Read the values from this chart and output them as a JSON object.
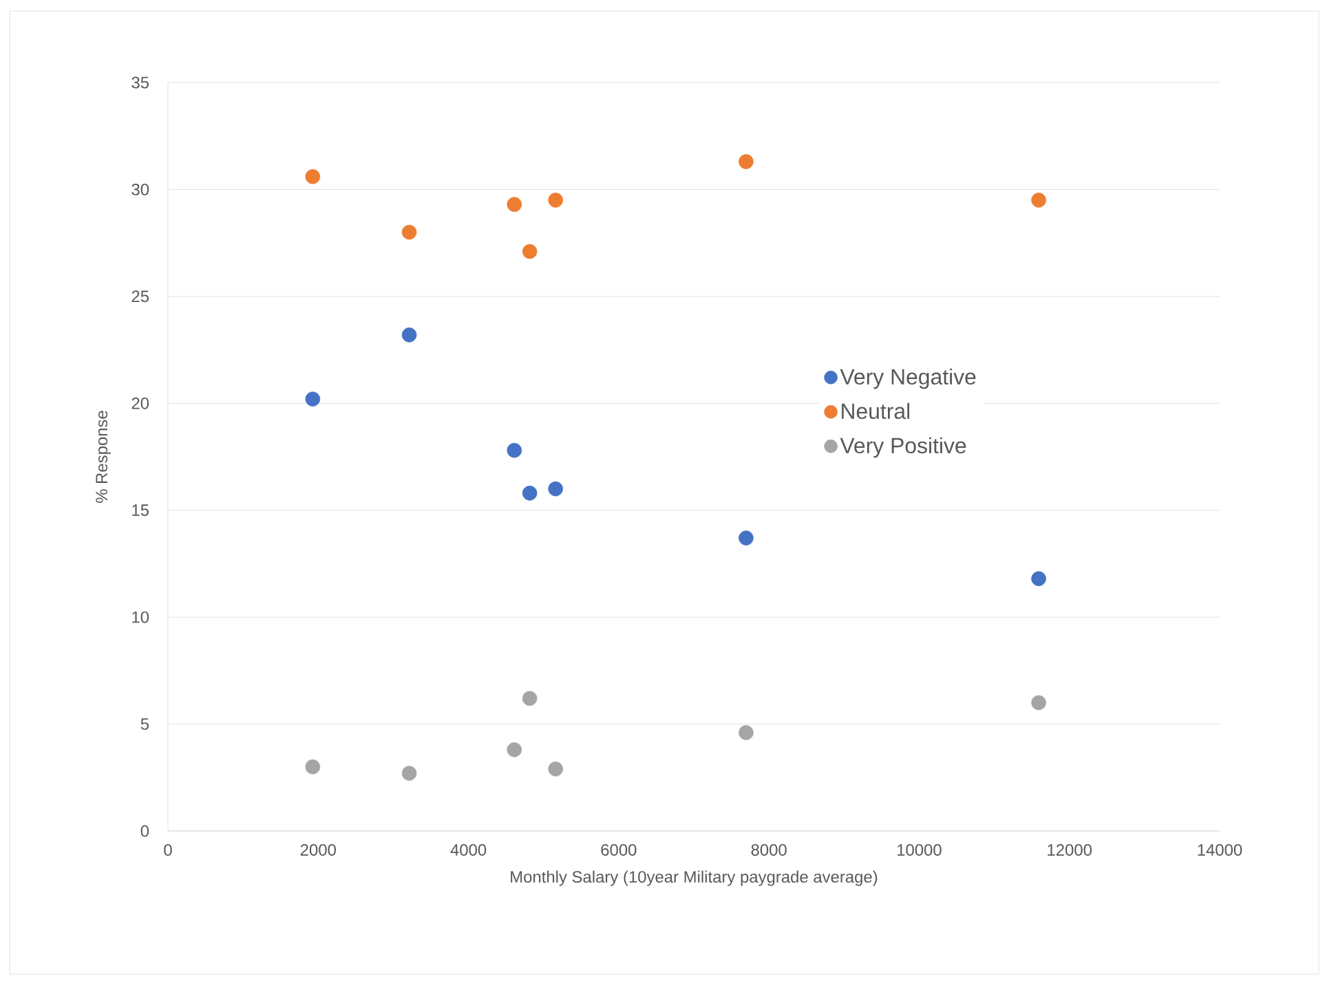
{
  "chart_data": {
    "type": "scatter",
    "xlabel": "Monthly Salary (10year Military paygrade average)",
    "ylabel": "% Response",
    "x": [
      1927,
      3212,
      4611,
      4816,
      5160,
      7696,
      11591
    ],
    "series": [
      {
        "name": "Very Negative",
        "color": "#4472c4",
        "values": [
          20.2,
          23.2,
          17.8,
          15.8,
          16.0,
          13.7,
          11.8
        ]
      },
      {
        "name": "Neutral",
        "color": "#ed7d31",
        "values": [
          30.6,
          28.0,
          29.3,
          27.1,
          29.5,
          31.3,
          29.5
        ]
      },
      {
        "name": "Very Positive",
        "color": "#a5a5a5",
        "values": [
          3.0,
          2.7,
          3.8,
          6.2,
          2.9,
          4.6,
          6.0
        ]
      }
    ],
    "xlim": [
      0,
      14000
    ],
    "xticks": [
      0,
      2000,
      4000,
      6000,
      8000,
      10000,
      12000,
      14000
    ],
    "ylim": [
      0,
      35
    ],
    "yticks": [
      0,
      5,
      10,
      15,
      20,
      25,
      30,
      35
    ],
    "grid": "y",
    "legend": "right",
    "marker": "circle"
  }
}
